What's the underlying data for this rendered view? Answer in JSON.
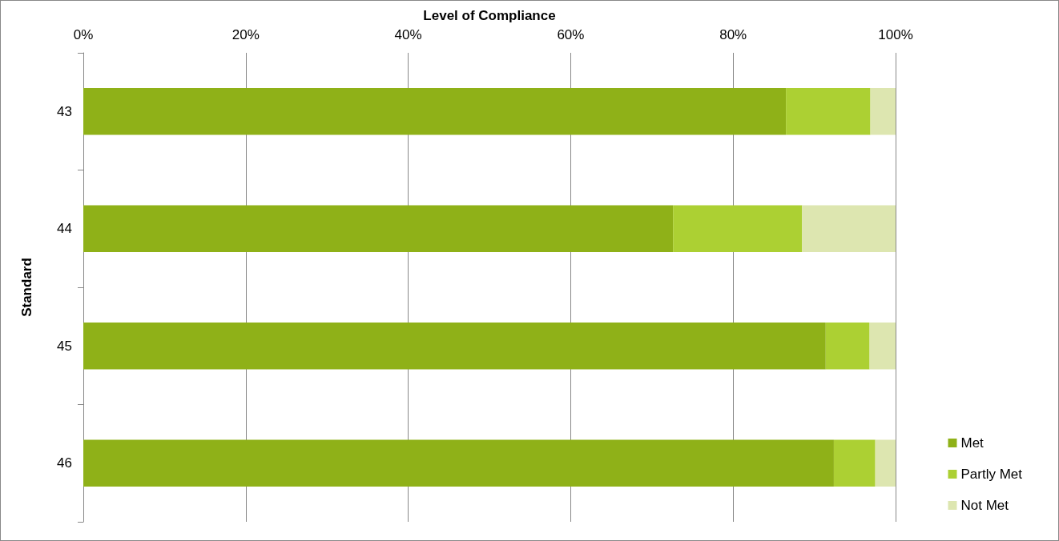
{
  "chart_data": {
    "type": "bar",
    "orientation": "horizontal",
    "stacked": true,
    "xlabel": "Level of Compliance",
    "ylabel": "Standard",
    "categories": [
      "43",
      "44",
      "45",
      "46"
    ],
    "series": [
      {
        "name": "Met",
        "color": "#8fb118",
        "values": [
          86.5,
          72.6,
          91.4,
          92.4
        ]
      },
      {
        "name": "Partly Met",
        "color": "#acd033",
        "values": [
          10.4,
          15.9,
          5.4,
          5.1
        ]
      },
      {
        "name": "Not Met",
        "color": "#dde6b0",
        "values": [
          3.1,
          11.5,
          3.2,
          2.5
        ]
      }
    ],
    "xlim": [
      0,
      100
    ],
    "xticks": [
      {
        "value": 0,
        "label": "0%"
      },
      {
        "value": 20,
        "label": "20%"
      },
      {
        "value": 40,
        "label": "40%"
      },
      {
        "value": 60,
        "label": "60%"
      },
      {
        "value": 80,
        "label": "80%"
      },
      {
        "value": 100,
        "label": "100%"
      }
    ],
    "grid": "x",
    "legend": "bottom right"
  }
}
